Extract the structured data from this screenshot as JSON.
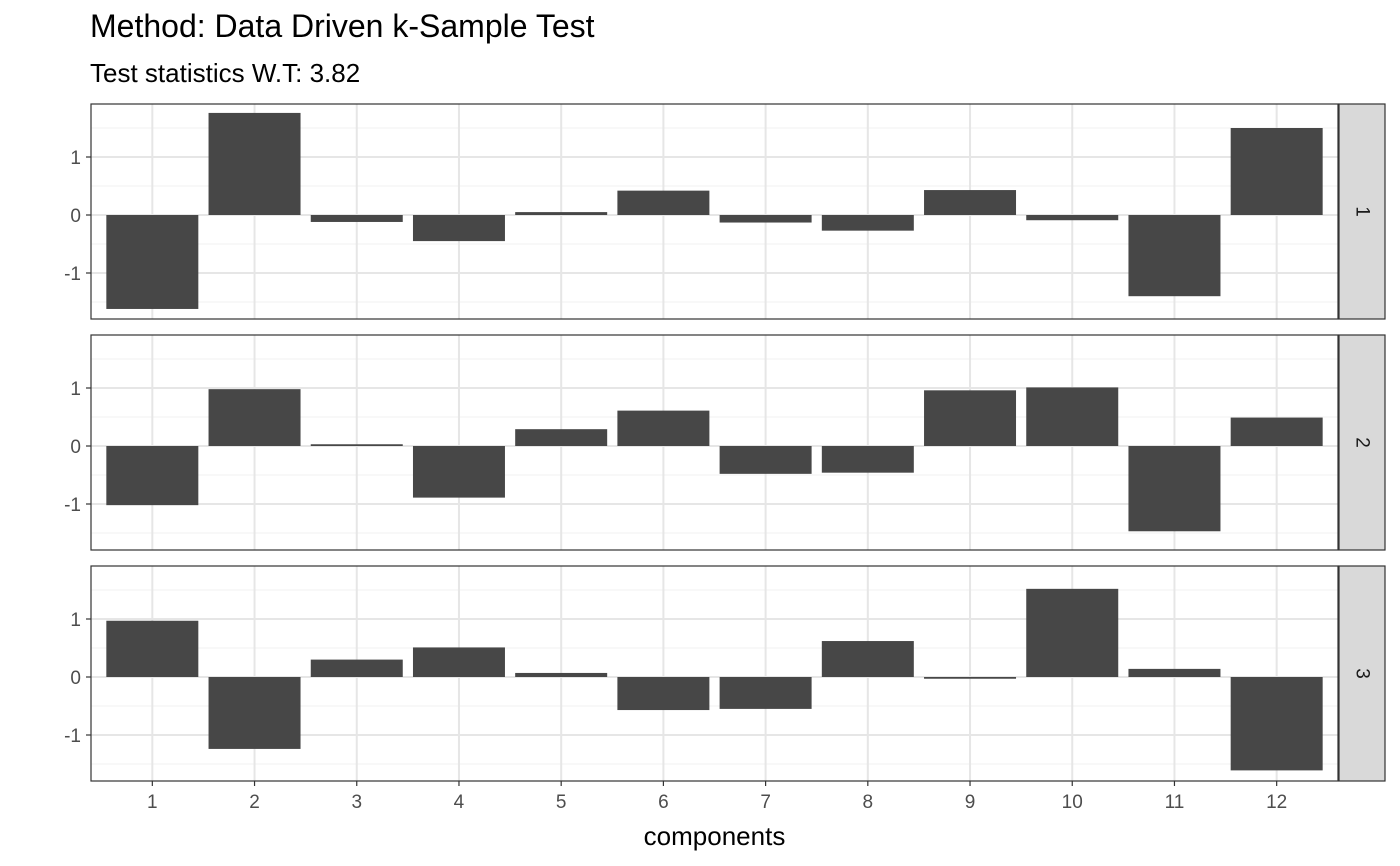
{
  "chart_data": {
    "type": "bar",
    "title": "Method: Data Driven k-Sample Test",
    "subtitle": "Test statistics W.T: 3.82",
    "xlabel": "components",
    "ylabel": "",
    "categories": [
      "1",
      "2",
      "3",
      "4",
      "5",
      "6",
      "7",
      "8",
      "9",
      "10",
      "11",
      "12"
    ],
    "y_ticks": [
      "-1",
      "0",
      "1"
    ],
    "ylim": [
      -1.8,
      1.9
    ],
    "bar_color": "#474747",
    "grid": true,
    "facets": [
      {
        "label": "1",
        "values": [
          -1.62,
          1.76,
          -0.12,
          -0.45,
          0.05,
          0.42,
          -0.13,
          -0.27,
          0.43,
          -0.09,
          -1.4,
          1.5
        ]
      },
      {
        "label": "2",
        "values": [
          -1.02,
          0.98,
          0.03,
          -0.89,
          0.29,
          0.61,
          -0.48,
          -0.46,
          0.96,
          1.01,
          -1.47,
          0.49
        ]
      },
      {
        "label": "3",
        "values": [
          0.97,
          -1.24,
          0.3,
          0.51,
          0.07,
          -0.57,
          -0.55,
          0.62,
          -0.03,
          1.52,
          0.14,
          -1.61
        ]
      }
    ]
  }
}
